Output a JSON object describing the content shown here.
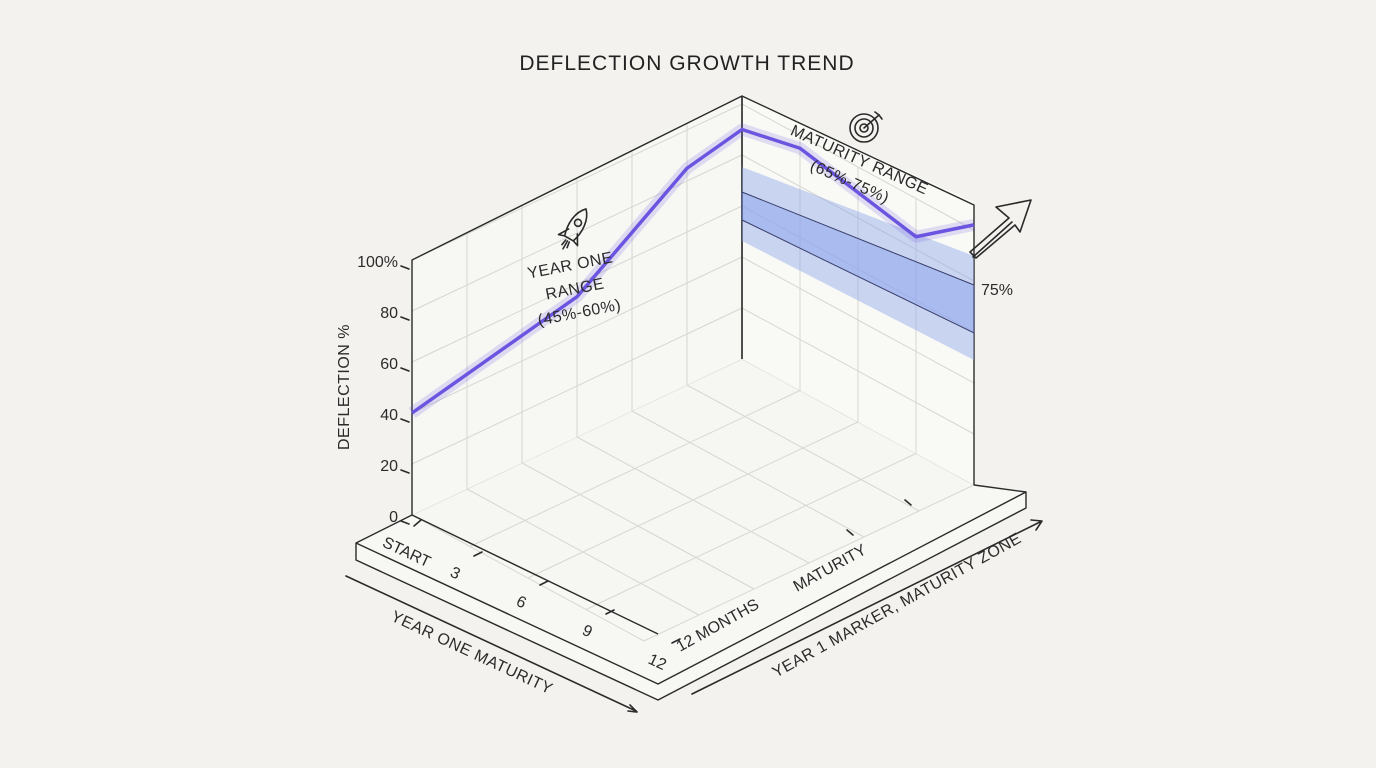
{
  "chart_data": {
    "type": "line",
    "title": "DEFLECTION GROWTH TREND",
    "ylabel": "DEFLECTION %",
    "ylim": [
      0,
      100
    ],
    "y_ticks": [
      "0",
      "20",
      "40",
      "60",
      "80",
      "100%"
    ],
    "x_ticks": [
      "START",
      "3",
      "6",
      "9",
      "12"
    ],
    "x_axis_label_left": "YEAR ONE  MATURITY",
    "depth_ticks": [
      "12 MONTHS",
      "MATURITY"
    ],
    "depth_axis_label": "YEAR 1 MARKER, MATURITY ZONE",
    "year_one_range": {
      "label": [
        "YEAR ONE",
        "RANGE",
        "(45%-60%)"
      ],
      "low": 45,
      "high": 60
    },
    "maturity_range": {
      "label": [
        "MATURITY RANGE",
        "(65%-75%)"
      ],
      "low": 65,
      "high": 75
    },
    "series": [
      {
        "color": "#6a55e0",
        "x": [
          0,
          0.5,
          1,
          1.5,
          2,
          2.5,
          3
        ],
        "y": [
          40,
          45,
          50,
          55,
          70,
          85,
          90
        ]
      }
    ],
    "series_depth": {
      "x": [
        0,
        0.5,
        1,
        1.5,
        2
      ],
      "y": [
        90,
        95,
        90,
        85,
        102
      ]
    },
    "end_label": "75%",
    "band_color": "#8fa6ec"
  }
}
